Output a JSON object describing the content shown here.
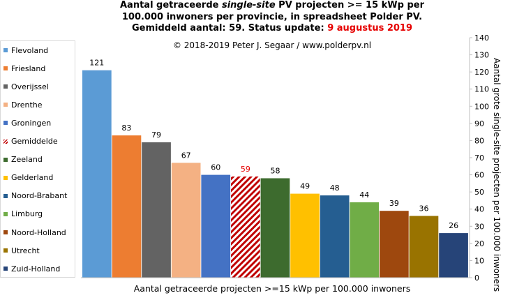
{
  "title": {
    "line1_pre": "Aantal getraceerde ",
    "line1_em": "single-site",
    "line1_post": " PV projecten >= 15 kWp per",
    "line2": "100.000 inwoners per provincie, in spreadsheet Polder PV.",
    "line3_pre": "Gemiddeld aantal: 59. Status update: ",
    "line3_date": "9 augustus 2019"
  },
  "credit": "© 2018-2019  Peter J. Segaar / www.polderpv.nl",
  "colors": {
    "highlight": "#e60000",
    "axis": "#bfbfbf",
    "border": "#d9d9d9"
  },
  "chart_data": {
    "type": "bar",
    "xlabel": "Aantal getraceerde projecten >=15 kWp per 100.000 inwoners",
    "ylabel": "Aantal grote single-site projecten per 100.000 inwoners",
    "ylim": [
      0,
      140
    ],
    "yticks": [
      0,
      10,
      20,
      30,
      40,
      50,
      60,
      70,
      80,
      90,
      100,
      110,
      120,
      130,
      140
    ],
    "grid": false,
    "legend_position": "left",
    "categories": [
      "Flevoland",
      "Friesland",
      "Overijssel",
      "Drenthe",
      "Groningen",
      "Gemiddelde",
      "Zeeland",
      "Gelderland",
      "Noord-Brabant",
      "Limburg",
      "Noord-Holland",
      "Utrecht",
      "Zuid-Holland"
    ],
    "values": [
      121,
      83,
      79,
      67,
      60,
      59,
      58,
      49,
      48,
      44,
      39,
      36,
      26
    ],
    "bar_colors": [
      "#5b9bd5",
      "#ed7d31",
      "#636363",
      "#f4b183",
      "#4472c4",
      "hatch:#c00000",
      "#3d6b2e",
      "#ffc000",
      "#255e91",
      "#70ad47",
      "#9e480e",
      "#997300",
      "#264478"
    ],
    "label_colors": [
      "#000000",
      "#000000",
      "#000000",
      "#000000",
      "#000000",
      "#e60000",
      "#000000",
      "#000000",
      "#000000",
      "#000000",
      "#000000",
      "#000000",
      "#000000"
    ]
  }
}
